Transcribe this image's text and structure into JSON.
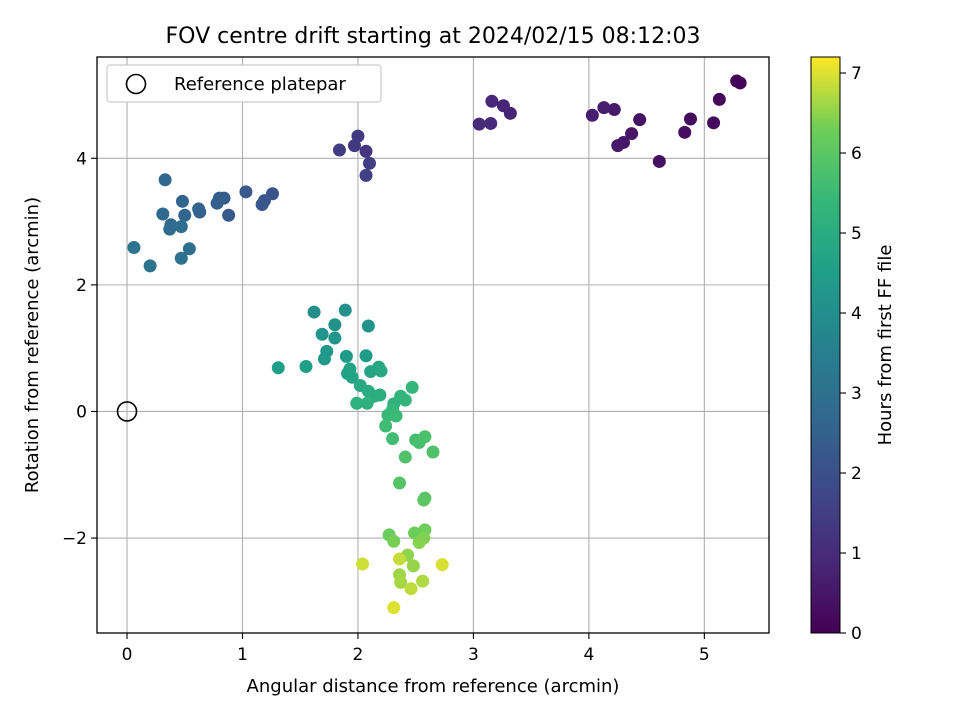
{
  "chart_data": {
    "type": "scatter",
    "title": "FOV centre drift starting at 2024/02/15 08:12:03",
    "xlabel": "Angular distance from reference (arcmin)",
    "ylabel": "Rotation from reference (arcmin)",
    "colorbar_label": "Hours from first FF file",
    "xlim": [
      -0.26,
      5.56
    ],
    "ylim": [
      -3.5,
      5.6
    ],
    "xticks": [
      0,
      1,
      2,
      3,
      4,
      5
    ],
    "yticks": [
      -2,
      0,
      2,
      4
    ],
    "colorbar_range": [
      0,
      7.2
    ],
    "colorbar_ticks": [
      0,
      1,
      2,
      3,
      4,
      5,
      6,
      7
    ],
    "colormap": "viridis",
    "grid": true,
    "legend": {
      "position": "top-left",
      "entries": [
        "Reference platepar"
      ]
    },
    "reference_point": {
      "x": 0,
      "y": 0,
      "label": "Reference platepar"
    },
    "points": [
      {
        "x": 5.28,
        "y": 5.22,
        "t": 0.05
      },
      {
        "x": 5.31,
        "y": 5.19,
        "t": 0.08
      },
      {
        "x": 5.13,
        "y": 4.93,
        "t": 0.15
      },
      {
        "x": 5.08,
        "y": 4.56,
        "t": 0.2
      },
      {
        "x": 4.88,
        "y": 4.62,
        "t": 0.25
      },
      {
        "x": 4.83,
        "y": 4.41,
        "t": 0.3
      },
      {
        "x": 4.61,
        "y": 3.95,
        "t": 0.35
      },
      {
        "x": 4.44,
        "y": 4.61,
        "t": 0.4
      },
      {
        "x": 4.37,
        "y": 4.39,
        "t": 0.45
      },
      {
        "x": 4.3,
        "y": 4.25,
        "t": 0.5
      },
      {
        "x": 4.25,
        "y": 4.2,
        "t": 0.55
      },
      {
        "x": 4.22,
        "y": 4.77,
        "t": 0.6
      },
      {
        "x": 4.13,
        "y": 4.8,
        "t": 0.65
      },
      {
        "x": 4.03,
        "y": 4.68,
        "t": 0.7
      },
      {
        "x": 3.32,
        "y": 4.71,
        "t": 0.8
      },
      {
        "x": 3.26,
        "y": 4.83,
        "t": 0.85
      },
      {
        "x": 3.16,
        "y": 4.9,
        "t": 0.9
      },
      {
        "x": 3.15,
        "y": 4.55,
        "t": 0.95
      },
      {
        "x": 3.05,
        "y": 4.54,
        "t": 1.0
      },
      {
        "x": 2.07,
        "y": 4.11,
        "t": 1.3
      },
      {
        "x": 2.0,
        "y": 4.35,
        "t": 1.35
      },
      {
        "x": 1.97,
        "y": 4.2,
        "t": 1.4
      },
      {
        "x": 1.84,
        "y": 4.13,
        "t": 1.45
      },
      {
        "x": 2.1,
        "y": 3.92,
        "t": 1.5
      },
      {
        "x": 2.07,
        "y": 3.73,
        "t": 1.55
      },
      {
        "x": 1.26,
        "y": 3.44,
        "t": 2.1
      },
      {
        "x": 1.19,
        "y": 3.33,
        "t": 2.15
      },
      {
        "x": 1.17,
        "y": 3.27,
        "t": 2.2
      },
      {
        "x": 1.03,
        "y": 3.47,
        "t": 2.25
      },
      {
        "x": 0.88,
        "y": 3.1,
        "t": 2.3
      },
      {
        "x": 0.84,
        "y": 3.37,
        "t": 2.35
      },
      {
        "x": 0.8,
        "y": 3.37,
        "t": 2.4
      },
      {
        "x": 0.78,
        "y": 3.29,
        "t": 2.45
      },
      {
        "x": 0.63,
        "y": 3.15,
        "t": 2.5
      },
      {
        "x": 0.62,
        "y": 3.2,
        "t": 2.55
      },
      {
        "x": 0.48,
        "y": 3.32,
        "t": 2.6
      },
      {
        "x": 0.5,
        "y": 3.1,
        "t": 2.65
      },
      {
        "x": 0.33,
        "y": 3.66,
        "t": 2.7
      },
      {
        "x": 0.31,
        "y": 3.12,
        "t": 2.75
      },
      {
        "x": 0.38,
        "y": 2.95,
        "t": 2.8
      },
      {
        "x": 0.37,
        "y": 2.88,
        "t": 2.85
      },
      {
        "x": 0.47,
        "y": 2.92,
        "t": 2.9
      },
      {
        "x": 0.54,
        "y": 2.57,
        "t": 2.95
      },
      {
        "x": 0.47,
        "y": 2.42,
        "t": 3.0
      },
      {
        "x": 0.2,
        "y": 2.3,
        "t": 3.05
      },
      {
        "x": 0.06,
        "y": 2.59,
        "t": 3.1
      },
      {
        "x": 1.62,
        "y": 1.57,
        "t": 4.0
      },
      {
        "x": 1.89,
        "y": 1.6,
        "t": 4.05
      },
      {
        "x": 1.8,
        "y": 1.37,
        "t": 4.1
      },
      {
        "x": 2.09,
        "y": 1.35,
        "t": 4.15
      },
      {
        "x": 1.69,
        "y": 1.22,
        "t": 4.2
      },
      {
        "x": 1.8,
        "y": 1.16,
        "t": 4.25
      },
      {
        "x": 1.73,
        "y": 0.95,
        "t": 4.3
      },
      {
        "x": 1.71,
        "y": 0.83,
        "t": 4.35
      },
      {
        "x": 1.9,
        "y": 0.87,
        "t": 4.4
      },
      {
        "x": 2.07,
        "y": 0.88,
        "t": 4.45
      },
      {
        "x": 1.31,
        "y": 0.69,
        "t": 4.5
      },
      {
        "x": 1.55,
        "y": 0.71,
        "t": 4.55
      },
      {
        "x": 1.91,
        "y": 0.6,
        "t": 4.6
      },
      {
        "x": 1.93,
        "y": 0.67,
        "t": 4.65
      },
      {
        "x": 1.95,
        "y": 0.54,
        "t": 4.7
      },
      {
        "x": 2.11,
        "y": 0.63,
        "t": 4.75
      },
      {
        "x": 2.18,
        "y": 0.7,
        "t": 4.8
      },
      {
        "x": 2.2,
        "y": 0.64,
        "t": 4.85
      },
      {
        "x": 2.02,
        "y": 0.41,
        "t": 4.9
      },
      {
        "x": 2.09,
        "y": 0.32,
        "t": 4.95
      },
      {
        "x": 2.14,
        "y": 0.24,
        "t": 5.0
      },
      {
        "x": 2.19,
        "y": 0.26,
        "t": 5.05
      },
      {
        "x": 1.99,
        "y": 0.13,
        "t": 5.1
      },
      {
        "x": 2.08,
        "y": 0.13,
        "t": 5.15
      },
      {
        "x": 2.31,
        "y": 0.12,
        "t": 5.2
      },
      {
        "x": 2.37,
        "y": 0.24,
        "t": 5.25
      },
      {
        "x": 2.41,
        "y": 0.18,
        "t": 5.3
      },
      {
        "x": 2.47,
        "y": 0.38,
        "t": 5.35
      },
      {
        "x": 2.3,
        "y": 0.03,
        "t": 5.4
      },
      {
        "x": 2.26,
        "y": -0.06,
        "t": 5.45
      },
      {
        "x": 2.33,
        "y": -0.07,
        "t": 5.5
      },
      {
        "x": 2.24,
        "y": -0.23,
        "t": 5.55
      },
      {
        "x": 2.3,
        "y": -0.43,
        "t": 5.6
      },
      {
        "x": 2.5,
        "y": -0.45,
        "t": 5.65
      },
      {
        "x": 2.53,
        "y": -0.49,
        "t": 5.7
      },
      {
        "x": 2.58,
        "y": -0.4,
        "t": 5.75
      },
      {
        "x": 2.65,
        "y": -0.64,
        "t": 5.8
      },
      {
        "x": 2.41,
        "y": -0.72,
        "t": 5.85
      },
      {
        "x": 2.36,
        "y": -1.13,
        "t": 5.9
      },
      {
        "x": 2.58,
        "y": -1.37,
        "t": 5.95
      },
      {
        "x": 2.57,
        "y": -1.4,
        "t": 6.0
      },
      {
        "x": 2.27,
        "y": -1.95,
        "t": 6.2
      },
      {
        "x": 2.49,
        "y": -1.92,
        "t": 6.25
      },
      {
        "x": 2.58,
        "y": -1.87,
        "t": 6.3
      },
      {
        "x": 2.31,
        "y": -2.05,
        "t": 6.35
      },
      {
        "x": 2.57,
        "y": -2.0,
        "t": 6.4
      },
      {
        "x": 2.53,
        "y": -2.07,
        "t": 6.45
      },
      {
        "x": 2.43,
        "y": -2.27,
        "t": 6.5
      },
      {
        "x": 2.48,
        "y": -2.44,
        "t": 6.55
      },
      {
        "x": 2.36,
        "y": -2.58,
        "t": 6.6
      },
      {
        "x": 2.37,
        "y": -2.7,
        "t": 6.65
      },
      {
        "x": 2.56,
        "y": -2.68,
        "t": 6.7
      },
      {
        "x": 2.46,
        "y": -2.8,
        "t": 6.8
      },
      {
        "x": 2.36,
        "y": -2.33,
        "t": 6.85
      },
      {
        "x": 2.04,
        "y": -2.41,
        "t": 6.9
      },
      {
        "x": 2.73,
        "y": -2.42,
        "t": 6.95
      },
      {
        "x": 2.31,
        "y": -3.1,
        "t": 7.0
      }
    ]
  }
}
